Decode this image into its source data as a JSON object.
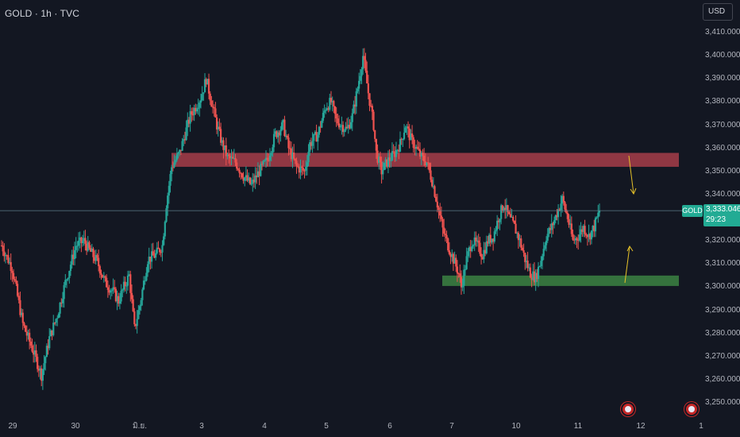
{
  "header": {
    "symbol_title": "GOLD · 1h · TVC",
    "currency_label": "USD"
  },
  "price_tag": {
    "symbol": "GOLD",
    "price": "3,333.046",
    "countdown": "29:23",
    "color": "#22ab94"
  },
  "chart_data": {
    "type": "candlestick",
    "title": "",
    "y_range": [
      3243,
      3414
    ],
    "y_ticks": [
      "3,410.000",
      "3,400.000",
      "3,390.000",
      "3,380.000",
      "3,370.000",
      "3,360.000",
      "3,350.000",
      "3,340.000",
      "3,330.000",
      "3,320.000",
      "3,310.000",
      "3,300.000",
      "3,290.000",
      "3,280.000",
      "3,270.000",
      "3,260.000",
      "3,250.000"
    ],
    "x_ticks": [
      "29",
      "30",
      "มิ.ย.",
      "3",
      "4",
      "5",
      "6",
      "7",
      "10",
      "11",
      "12",
      "1"
    ],
    "current_price": 3333.046,
    "zones": [
      {
        "name": "resistance",
        "from": 3352,
        "to": 3358,
        "color": "#f7525f"
      },
      {
        "name": "support",
        "from": 3300.5,
        "to": 3305,
        "color": "#4caf50"
      }
    ],
    "arrows": [
      {
        "direction": "down",
        "color": "#e6c229"
      },
      {
        "direction": "up",
        "color": "#e6c229"
      }
    ],
    "anchors": [
      [
        0,
        3318
      ],
      [
        8,
        3308
      ],
      [
        16,
        3284
      ],
      [
        24,
        3272
      ],
      [
        30,
        3262
      ],
      [
        36,
        3278
      ],
      [
        42,
        3288
      ],
      [
        48,
        3302
      ],
      [
        56,
        3318
      ],
      [
        62,
        3320
      ],
      [
        66,
        3316
      ],
      [
        72,
        3311
      ],
      [
        78,
        3302
      ],
      [
        84,
        3298
      ],
      [
        88,
        3294
      ],
      [
        92,
        3300
      ],
      [
        96,
        3305
      ],
      [
        100,
        3282
      ],
      [
        104,
        3292
      ],
      [
        110,
        3312
      ],
      [
        116,
        3314
      ],
      [
        121,
        3318
      ],
      [
        124,
        3336
      ],
      [
        128,
        3352
      ],
      [
        134,
        3358
      ],
      [
        142,
        3374
      ],
      [
        150,
        3382
      ],
      [
        154,
        3390
      ],
      [
        158,
        3380
      ],
      [
        162,
        3370
      ],
      [
        166,
        3362
      ],
      [
        170,
        3356
      ],
      [
        176,
        3354
      ],
      [
        182,
        3348
      ],
      [
        188,
        3344
      ],
      [
        194,
        3350
      ],
      [
        200,
        3355
      ],
      [
        206,
        3366
      ],
      [
        212,
        3370
      ],
      [
        216,
        3360
      ],
      [
        222,
        3352
      ],
      [
        228,
        3350
      ],
      [
        232,
        3362
      ],
      [
        238,
        3366
      ],
      [
        244,
        3378
      ],
      [
        248,
        3380
      ],
      [
        252,
        3372
      ],
      [
        256,
        3370
      ],
      [
        260,
        3368
      ],
      [
        264,
        3374
      ],
      [
        268,
        3386
      ],
      [
        272,
        3400
      ],
      [
        276,
        3384
      ],
      [
        280,
        3370
      ],
      [
        282,
        3358
      ],
      [
        286,
        3350
      ],
      [
        290,
        3354
      ],
      [
        296,
        3358
      ],
      [
        300,
        3362
      ],
      [
        304,
        3370
      ],
      [
        308,
        3364
      ],
      [
        312,
        3360
      ],
      [
        316,
        3356
      ],
      [
        320,
        3354
      ],
      [
        324,
        3346
      ],
      [
        328,
        3336
      ],
      [
        332,
        3325
      ],
      [
        336,
        3318
      ],
      [
        340,
        3312
      ],
      [
        344,
        3306
      ],
      [
        346,
        3300
      ],
      [
        350,
        3312
      ],
      [
        354,
        3320
      ],
      [
        358,
        3318
      ],
      [
        362,
        3314
      ],
      [
        366,
        3320
      ],
      [
        370,
        3322
      ],
      [
        374,
        3330
      ],
      [
        378,
        3336
      ],
      [
        382,
        3330
      ],
      [
        386,
        3326
      ],
      [
        390,
        3320
      ],
      [
        394,
        3312
      ],
      [
        398,
        3306
      ],
      [
        402,
        3304
      ],
      [
        406,
        3312
      ],
      [
        410,
        3322
      ],
      [
        414,
        3326
      ],
      [
        418,
        3332
      ],
      [
        422,
        3338
      ],
      [
        426,
        3330
      ],
      [
        430,
        3320
      ],
      [
        434,
        3322
      ],
      [
        438,
        3326
      ],
      [
        442,
        3322
      ],
      [
        446,
        3326
      ],
      [
        450,
        3333
      ]
    ]
  },
  "colors": {
    "background": "#131722",
    "up_candle": "#26a69a",
    "down_candle": "#ef5350",
    "grid": "#1e222d"
  }
}
